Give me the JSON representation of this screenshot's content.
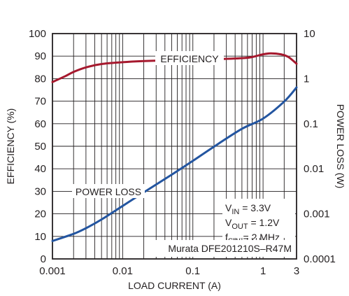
{
  "chart_data": {
    "type": "line",
    "xlabel": "LOAD CURRENT (A)",
    "ylabel": "EFFICIENCY (%)",
    "y2label": "POWER LOSS (W)",
    "x_scale": "log",
    "xlim": [
      0.001,
      3
    ],
    "ylim": [
      0,
      100
    ],
    "y2_scale": "log",
    "y2lim": [
      0.0001,
      10
    ],
    "grid": true,
    "x_ticks": [
      0.001,
      0.01,
      0.1,
      1,
      3
    ],
    "x_tick_labels": [
      "0.001",
      "0.01",
      "0.1",
      "1",
      "3"
    ],
    "y_ticks": [
      0,
      10,
      20,
      30,
      40,
      50,
      60,
      70,
      80,
      90,
      100
    ],
    "y_tick_labels": [
      "0",
      "10",
      "20",
      "30",
      "40",
      "50",
      "60",
      "70",
      "80",
      "90",
      "100"
    ],
    "y2_ticks": [
      0.0001,
      0.001,
      0.01,
      0.1,
      1,
      10
    ],
    "y2_tick_labels": [
      "0.0001",
      "0.001",
      "0.01",
      "0.1",
      "1",
      "10"
    ],
    "series": [
      {
        "name": "EFFICIENCY",
        "axis": "left",
        "color": "#a6192e",
        "x": [
          0.001,
          0.0015,
          0.002,
          0.003,
          0.005,
          0.01,
          0.02,
          0.05,
          0.1,
          0.2,
          0.5,
          0.7,
          1.0,
          1.3,
          1.8,
          2.3,
          3.0
        ],
        "y": [
          78.5,
          81.0,
          83.0,
          85.0,
          86.5,
          87.3,
          87.8,
          88.2,
          88.4,
          88.6,
          89.1,
          89.6,
          90.8,
          91.2,
          90.8,
          89.6,
          86.6
        ]
      },
      {
        "name": "POWER LOSS",
        "axis": "right",
        "color": "#2355a0",
        "x": [
          0.001,
          0.002,
          0.003,
          0.005,
          0.01,
          0.02,
          0.05,
          0.1,
          0.2,
          0.5,
          1.0,
          2.0,
          3.0
        ],
        "y": [
          0.00025,
          0.00036,
          0.00048,
          0.00075,
          0.0015,
          0.003,
          0.0074,
          0.015,
          0.031,
          0.077,
          0.13,
          0.31,
          0.64
        ]
      }
    ],
    "annotations": {
      "efficiency_label": "EFFICIENCY",
      "power_loss_label": "POWER LOSS",
      "vin_main": "V",
      "vin_sub": "IN",
      "vin_rest": " = 3.3V",
      "vout_main": "V",
      "vout_sub": "OUT",
      "vout_rest": " = 1.2V",
      "fsw_main": "f",
      "fsw_sub": "SW",
      "fsw_rest": " = 2 MHz",
      "part": "Murata DFE201210S–R47M"
    }
  }
}
